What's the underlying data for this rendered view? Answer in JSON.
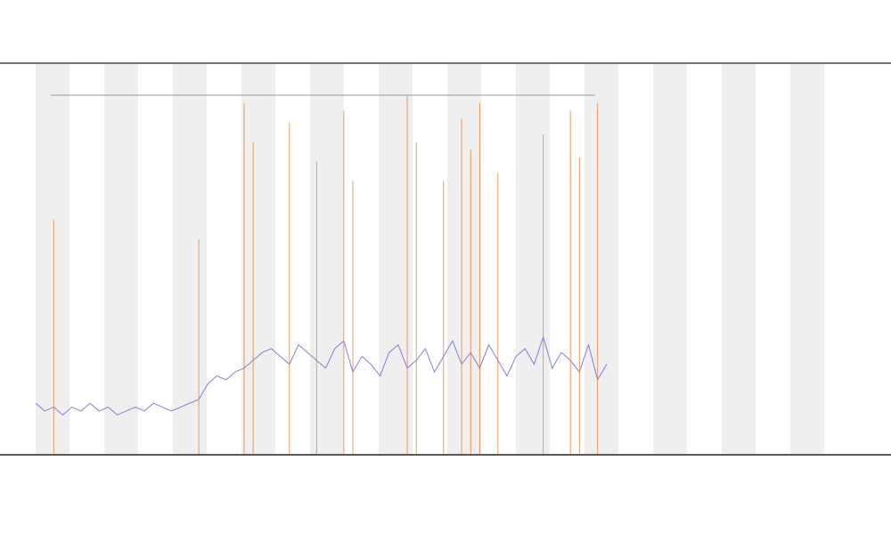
{
  "chart_data": {
    "type": "line",
    "x": [
      0,
      1,
      2,
      3,
      4,
      5,
      6,
      7,
      8,
      9,
      10,
      11,
      12,
      13,
      14,
      15,
      16,
      17,
      18,
      19,
      20,
      21,
      22,
      23,
      24,
      25,
      26,
      27,
      28,
      29,
      30,
      31,
      32,
      33,
      34,
      35,
      36,
      37,
      38,
      39,
      40,
      41,
      42,
      43,
      44,
      45,
      46,
      47,
      48,
      49,
      50,
      51,
      52,
      53,
      54,
      55,
      56,
      57,
      58,
      59,
      60,
      61,
      62,
      63
    ],
    "xlim": [
      0,
      87
    ],
    "ylim": [
      0,
      100
    ],
    "series": [
      {
        "color": "#7b7fe0",
        "values": [
          13,
          11,
          12,
          10,
          12,
          11,
          13,
          11,
          12,
          10,
          11,
          12,
          11,
          13,
          12,
          11,
          12,
          13,
          14,
          18,
          20,
          19,
          21,
          22,
          24,
          26,
          27,
          25,
          23,
          28,
          26,
          24,
          22,
          27,
          29,
          21,
          25,
          23,
          20,
          26,
          28,
          22,
          24,
          27,
          21,
          25,
          29,
          23,
          26,
          22,
          28,
          24,
          20,
          25,
          27,
          23,
          30,
          22,
          26,
          24,
          21,
          28,
          19,
          23
        ]
      },
      {
        "color": "#e8843a",
        "style": "spike",
        "values": [
          null,
          null,
          60,
          null,
          null,
          null,
          null,
          null,
          null,
          null,
          null,
          null,
          null,
          null,
          null,
          null,
          null,
          null,
          55,
          null,
          null,
          null,
          null,
          90,
          80,
          null,
          null,
          null,
          85,
          null,
          null,
          75,
          null,
          null,
          88,
          70,
          null,
          null,
          null,
          null,
          null,
          92,
          80,
          null,
          null,
          70,
          null,
          86,
          78,
          90,
          null,
          72,
          null,
          null,
          null,
          null,
          82,
          null,
          null,
          88,
          76,
          null,
          90,
          null
        ]
      }
    ]
  }
}
